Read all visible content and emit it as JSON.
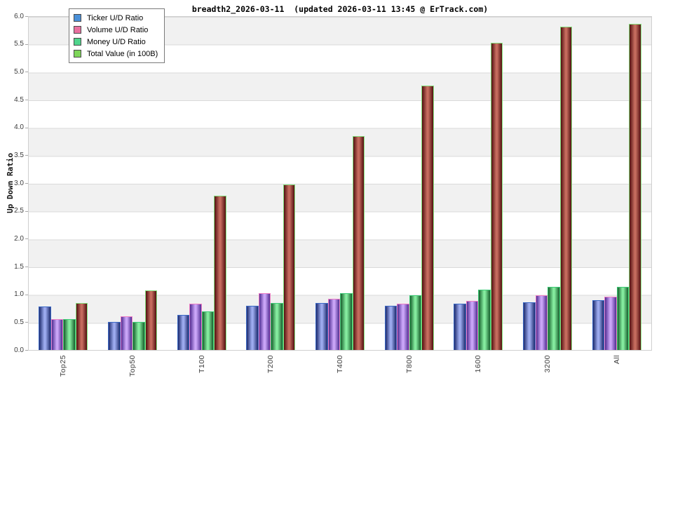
{
  "chart_data": {
    "type": "bar",
    "title": "breadth2_2026-03-11  (updated 2026-03-11 13:45 @ ErTrack.com)",
    "ylabel": "Up Down Ratio",
    "xlabel": "",
    "ylim": [
      0,
      6.0
    ],
    "ytick_step": 0.5,
    "grid": true,
    "background_stripes": "alternating 0.5-unit gray/white bands",
    "legend_position": "upper left",
    "categories": [
      "Top25",
      "Top50",
      "T100",
      "T200",
      "T400",
      "T800",
      "1600",
      "3200",
      "All"
    ],
    "series": [
      {
        "name": "Ticker U/D Ratio",
        "swatch_color": "#4a90d8",
        "bar_edge_color": "#3c6ac6",
        "bar_face_dark": "#1e2c6e",
        "bar_face_light": "#9dabef",
        "values": [
          0.78,
          0.51,
          0.63,
          0.79,
          0.85,
          0.79,
          0.83,
          0.86,
          0.89
        ]
      },
      {
        "name": "Volume U/D Ratio",
        "swatch_color": "#e8709f",
        "bar_edge_color": "#ee7fc4",
        "bar_face_dark": "#502d92",
        "bar_face_light": "#cba6f8",
        "values": [
          0.55,
          0.61,
          0.83,
          1.02,
          0.92,
          0.83,
          0.88,
          0.98,
          0.96
        ]
      },
      {
        "name": "Money U/D Ratio",
        "swatch_color": "#4fd48c",
        "bar_edge_color": "#3ecb78",
        "bar_face_dark": "#175f2c",
        "bar_face_light": "#85ec9f",
        "values": [
          0.55,
          0.51,
          0.69,
          0.84,
          1.02,
          0.98,
          1.08,
          1.13,
          1.14
        ]
      },
      {
        "name": "Total Value (in 100B)",
        "swatch_color": "#7ed659",
        "bar_edge_color": "#84e07e",
        "bar_face_dark": "#510f10",
        "bar_face_light": "#c66c5e",
        "values": [
          0.84,
          1.07,
          2.77,
          2.98,
          3.85,
          4.75,
          5.52,
          5.81,
          5.86
        ]
      }
    ],
    "ytick_labels": [
      "0.0",
      "0.5",
      "1.0",
      "1.5",
      "2.0",
      "2.5",
      "3.0",
      "3.5",
      "4.0",
      "4.5",
      "5.0",
      "5.5",
      "6.0"
    ]
  }
}
